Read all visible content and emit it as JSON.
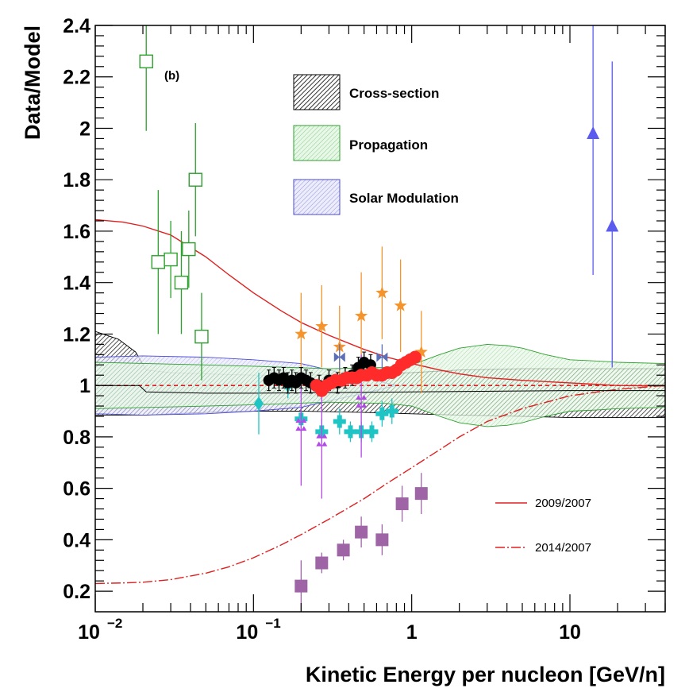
{
  "chart_data": {
    "type": "scatter",
    "panel_label": "(b)",
    "xlabel": "Kinetic Energy per nucleon [GeV/n]",
    "ylabel": "Data/Model",
    "xscale": "log",
    "xlim": [
      0.01,
      40
    ],
    "ylim": [
      0.12,
      2.4
    ],
    "x_tick_labels": [
      {
        "value": 0.01,
        "base": "10",
        "exp": "−2"
      },
      {
        "value": 0.1,
        "base": "10",
        "exp": "−1"
      },
      {
        "value": 1,
        "base": "1",
        "exp": ""
      },
      {
        "value": 10,
        "base": "10",
        "exp": ""
      }
    ],
    "y_ticks": [
      0.2,
      0.4,
      0.6,
      0.8,
      1,
      1.2,
      1.4,
      1.6,
      1.8,
      2,
      2.2,
      2.4
    ],
    "y_tick_labels": [
      "0.2",
      "0.4",
      "0.6",
      "0.8",
      "1",
      "1.2",
      "1.4",
      "1.6",
      "1.8",
      "2",
      "2.2",
      "2.4"
    ],
    "bands": [
      {
        "name": "Cross-section",
        "color": "#000000",
        "x": [
          0.01,
          0.014,
          0.018,
          0.021,
          0.03,
          0.05,
          0.1,
          0.2,
          0.5,
          1,
          2,
          5,
          10,
          20,
          40
        ],
        "upper": [
          1.21,
          1.18,
          1.13,
          1.06,
          1.05,
          1.045,
          1.04,
          1.04,
          1.045,
          1.05,
          1.06,
          1.065,
          1.065,
          1.065,
          1.065
        ],
        "lower": [
          0.885,
          0.885,
          0.885,
          0.885,
          0.89,
          0.895,
          0.9,
          0.9,
          0.895,
          0.89,
          0.885,
          0.88,
          0.875,
          0.875,
          0.875
        ]
      },
      {
        "name": "Propagation",
        "color": "#2ca02c",
        "x": [
          0.01,
          0.05,
          0.1,
          0.3,
          0.7,
          1,
          1.5,
          2,
          3,
          4,
          5,
          7,
          10,
          15,
          20,
          40
        ],
        "upper": [
          1.09,
          1.08,
          1.075,
          1.065,
          1.07,
          1.08,
          1.12,
          1.145,
          1.16,
          1.155,
          1.145,
          1.12,
          1.1,
          1.095,
          1.09,
          1.085
        ],
        "lower": [
          0.91,
          0.92,
          0.925,
          0.935,
          0.93,
          0.92,
          0.88,
          0.855,
          0.84,
          0.845,
          0.855,
          0.88,
          0.9,
          0.905,
          0.91,
          0.915
        ]
      },
      {
        "name": "Solar Modulation",
        "color": "#4b4bd8",
        "x": [
          0.01,
          0.02,
          0.05,
          0.1,
          0.2,
          0.3,
          0.5,
          0.8
        ],
        "upper": [
          1.11,
          1.115,
          1.11,
          1.1,
          1.085,
          1.06,
          1.03,
          1.0
        ],
        "lower": [
          0.89,
          0.885,
          0.89,
          0.9,
          0.915,
          0.94,
          0.97,
          1.0
        ]
      }
    ],
    "series": [
      {
        "name": "open squares (green)",
        "marker": "open-square",
        "color": "#2ca02c",
        "x": [
          0.021,
          0.025,
          0.03,
          0.035,
          0.039,
          0.043,
          0.047
        ],
        "y": [
          2.26,
          1.48,
          1.49,
          1.4,
          1.53,
          1.8,
          1.19
        ],
        "err": [
          0.27,
          0.28,
          0.15,
          0.2,
          0.15,
          0.22,
          0.17
        ]
      },
      {
        "name": "cyan diamonds",
        "marker": "diamond",
        "color": "#1fc5c5",
        "x": [
          0.108,
          0.165
        ],
        "y": [
          0.93,
          1.0
        ],
        "err": [
          0.12,
          0.05
        ]
      },
      {
        "name": "cyan crosses",
        "marker": "cross",
        "color": "#1fc5c5",
        "x": [
          0.2,
          0.27,
          0.35,
          0.41,
          0.48,
          0.56,
          0.65,
          0.75
        ],
        "y": [
          0.87,
          0.82,
          0.86,
          0.82,
          0.82,
          0.82,
          0.89,
          0.9
        ],
        "err": [
          0.05,
          0.05,
          0.05,
          0.04,
          0.04,
          0.04,
          0.05,
          0.05
        ]
      },
      {
        "name": "orange stars",
        "marker": "star",
        "color": "#f5942c",
        "x": [
          0.2,
          0.27,
          0.35,
          0.48,
          0.65,
          0.85,
          1.15
        ],
        "y": [
          1.2,
          1.23,
          1.15,
          1.27,
          1.36,
          1.31,
          1.13
        ],
        "err": [
          0.16,
          0.16,
          0.16,
          0.17,
          0.18,
          0.18,
          0.16
        ]
      },
      {
        "name": "violet triangles",
        "marker": "triangle-pair",
        "color": "#b447e8",
        "x": [
          0.2,
          0.27,
          0.48
        ],
        "y": [
          0.83,
          0.77,
          0.92
        ],
        "err": [
          0.22,
          0.21,
          0.2
        ]
      },
      {
        "name": "slate bowties",
        "marker": "bowtie",
        "color": "#5a6fb8",
        "x": [
          0.35,
          0.65
        ],
        "y": [
          1.11,
          1.11
        ],
        "err": [
          0.05,
          0.05
        ]
      },
      {
        "name": "black filled circles",
        "marker": "circle",
        "color": "#000000",
        "x": [
          0.125,
          0.135,
          0.145,
          0.155,
          0.165,
          0.175,
          0.185,
          0.2,
          0.215,
          0.23,
          0.26,
          0.3,
          0.34,
          0.38,
          0.42,
          0.46,
          0.5,
          0.55
        ],
        "y": [
          1.02,
          1.03,
          1.02,
          1.03,
          1.01,
          1.02,
          1.01,
          1.03,
          1.02,
          1.01,
          1.0,
          1.02,
          1.01,
          1.03,
          1.04,
          1.07,
          1.09,
          1.08
        ],
        "err": [
          0.04,
          0.04,
          0.04,
          0.04,
          0.04,
          0.04,
          0.04,
          0.04,
          0.04,
          0.04,
          0.04,
          0.04,
          0.04,
          0.04,
          0.04,
          0.04,
          0.04,
          0.04
        ]
      },
      {
        "name": "red filled circles",
        "marker": "circle",
        "color": "#ff2a2a",
        "x": [
          0.25,
          0.27,
          0.29,
          0.31,
          0.33,
          0.36,
          0.39,
          0.42,
          0.45,
          0.48,
          0.52,
          0.56,
          0.6,
          0.65,
          0.7,
          0.75,
          0.8,
          0.86,
          0.92,
          0.98,
          1.05
        ],
        "y": [
          1.0,
          0.98,
          1.0,
          1.01,
          1.02,
          1.02,
          1.03,
          1.03,
          1.03,
          1.04,
          1.04,
          1.05,
          1.04,
          1.04,
          1.05,
          1.05,
          1.06,
          1.08,
          1.09,
          1.1,
          1.11
        ],
        "err": [
          0.02,
          0.02,
          0.02,
          0.02,
          0.02,
          0.02,
          0.02,
          0.02,
          0.02,
          0.02,
          0.02,
          0.02,
          0.02,
          0.02,
          0.02,
          0.02,
          0.02,
          0.02,
          0.02,
          0.02,
          0.02
        ]
      },
      {
        "name": "purple squares",
        "marker": "filled-square",
        "color": "#9e64a6",
        "x": [
          0.2,
          0.27,
          0.37,
          0.48,
          0.65,
          0.87,
          1.15
        ],
        "y": [
          0.22,
          0.31,
          0.36,
          0.43,
          0.4,
          0.54,
          0.58
        ],
        "err": [
          0.1,
          0.04,
          0.04,
          0.06,
          0.06,
          0.07,
          0.08
        ]
      },
      {
        "name": "blue triangles",
        "marker": "triangle",
        "color": "#5b5bf0",
        "x": [
          14,
          18.5
        ],
        "y": [
          1.98,
          1.62
        ],
        "err_low": [
          0.55,
          0.55
        ],
        "err_high": [
          0.45,
          0.64
        ]
      }
    ],
    "lines": [
      {
        "name": "2009/2007",
        "style": "solid",
        "color": "#e02020",
        "x": [
          0.01,
          0.015,
          0.02,
          0.03,
          0.05,
          0.07,
          0.1,
          0.15,
          0.2,
          0.3,
          0.5,
          0.7,
          1,
          1.5,
          2,
          3,
          5,
          10,
          20,
          40
        ],
        "y": [
          1.645,
          1.635,
          1.62,
          1.585,
          1.5,
          1.43,
          1.36,
          1.29,
          1.245,
          1.195,
          1.14,
          1.11,
          1.085,
          1.06,
          1.045,
          1.03,
          1.02,
          1.01,
          1.0,
          0.998
        ]
      },
      {
        "name": "2014/2007",
        "style": "dashed",
        "color": "#e02020",
        "x": [
          0.01,
          0.015,
          0.02,
          0.03,
          0.05,
          0.07,
          0.1,
          0.15,
          0.2,
          0.3,
          0.5,
          0.7,
          1,
          1.5,
          2,
          3,
          5,
          10,
          20,
          40
        ],
        "y": [
          0.23,
          0.232,
          0.235,
          0.245,
          0.27,
          0.295,
          0.33,
          0.38,
          0.42,
          0.48,
          0.56,
          0.62,
          0.68,
          0.75,
          0.8,
          0.86,
          0.91,
          0.96,
          0.985,
          1.0
        ]
      },
      {
        "name": "reference dashed",
        "style": "dashed-short",
        "color": "#e02020",
        "x": [
          0.01,
          40
        ],
        "y": [
          1,
          1
        ]
      },
      {
        "name": "model step",
        "style": "solid-thin",
        "color": "#000000",
        "x": [
          0.01,
          0.019,
          0.021,
          0.05,
          0.1,
          1,
          10,
          40
        ],
        "y": [
          1.0,
          1.0,
          0.975,
          0.97,
          0.97,
          0.975,
          0.98,
          0.98
        ]
      }
    ],
    "legend_bands": [
      "Cross-section",
      "Propagation",
      "Solar Modulation"
    ],
    "legend_lines": [
      "2009/2007",
      "2014/2007"
    ]
  }
}
